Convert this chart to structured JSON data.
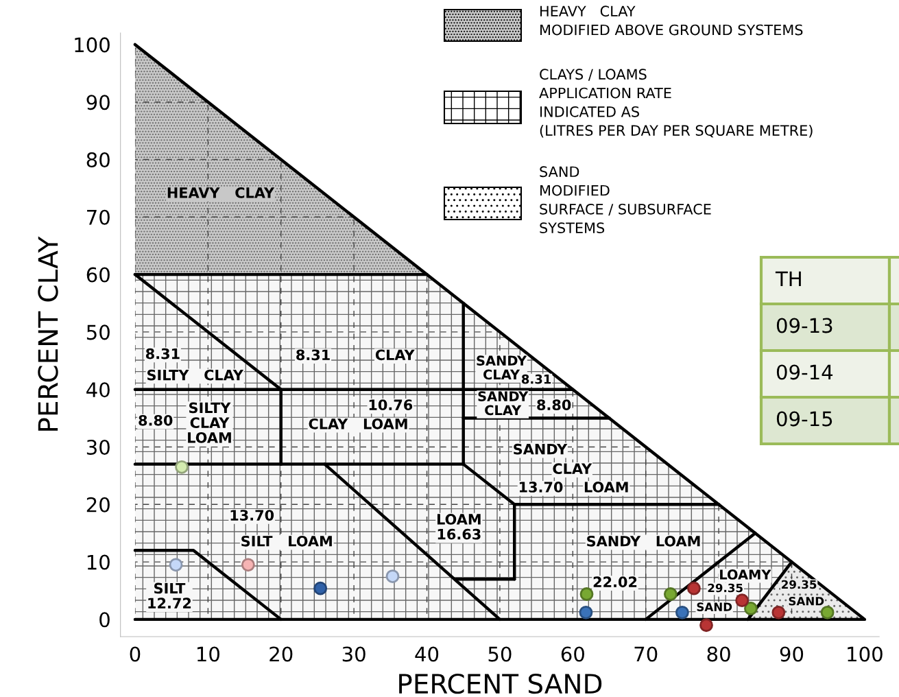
{
  "chart_data": {
    "type": "scatter",
    "xlabel": "PERCENT SAND",
    "ylabel": "PERCENT CLAY",
    "xlim": [
      -2,
      102
    ],
    "ylim": [
      -3,
      102
    ],
    "xticks": [
      0,
      10,
      20,
      30,
      40,
      50,
      60,
      70,
      80,
      90,
      100
    ],
    "yticks": [
      0,
      10,
      20,
      30,
      40,
      50,
      60,
      70,
      80,
      90,
      100
    ],
    "grid": true,
    "marker": "circle",
    "series": [
      {
        "color": "#d4ecb0",
        "x": [
          6.4
        ],
        "values": [
          26.5
        ]
      },
      {
        "color": "#c5d8f8",
        "x": [
          5.6,
          35.3
        ],
        "values": [
          9.5,
          7.5
        ]
      },
      {
        "color": "#f6b4b4",
        "x": [
          15.5
        ],
        "values": [
          9.5
        ]
      },
      {
        "color": "#3061a8",
        "x": [
          25.4
        ],
        "values": [
          5.4
        ]
      },
      {
        "color": "#78a832",
        "x": [
          61.9,
          73.4,
          84.4,
          94.9
        ],
        "values": [
          4.4,
          4.4,
          1.9,
          1.2
        ]
      },
      {
        "color": "#3a72b8",
        "x": [
          61.8,
          75.0
        ],
        "values": [
          1.2,
          1.2
        ]
      },
      {
        "color": "#b83434",
        "x": [
          76.6,
          78.3,
          83.2,
          88.2
        ],
        "values": [
          5.4,
          -1.0,
          3.3,
          1.2
        ]
      }
    ],
    "annotations": [
      "HEAVY   CLAY",
      "8.31",
      "SILTY   CLAY",
      "8.31",
      "CLAY",
      "SANDY\nCLAY",
      "8.31",
      "8.80",
      "SILTY\nCLAY\nLOAM",
      "10.76",
      "CLAY   LOAM",
      "SANDY\nCLAY",
      "8.80",
      "SANDY",
      "CLAY",
      "13.70",
      "LOAM",
      "13.70",
      "SILT   LOAM",
      "LOAM\n16.63",
      "SANDY   LOAM",
      "22.02",
      "LOAMY",
      "29.35",
      "29.35",
      "SAND",
      "SAND",
      "SILT\n12.72",
      "HEAVY   CLAY\nMODIFIED ABOVE GROUND SYSTEMS",
      "CLAYS / LOAMS\nAPPLICATION RATE\nINDICATED AS\n(LITRES PER DAY PER SQUARE METRE)",
      "SAND\nMODIFIED\nSURFACE / SUBSURFACE\nSYSTEMS",
      "TH",
      "09-13",
      "09-14",
      "09-15"
    ]
  }
}
